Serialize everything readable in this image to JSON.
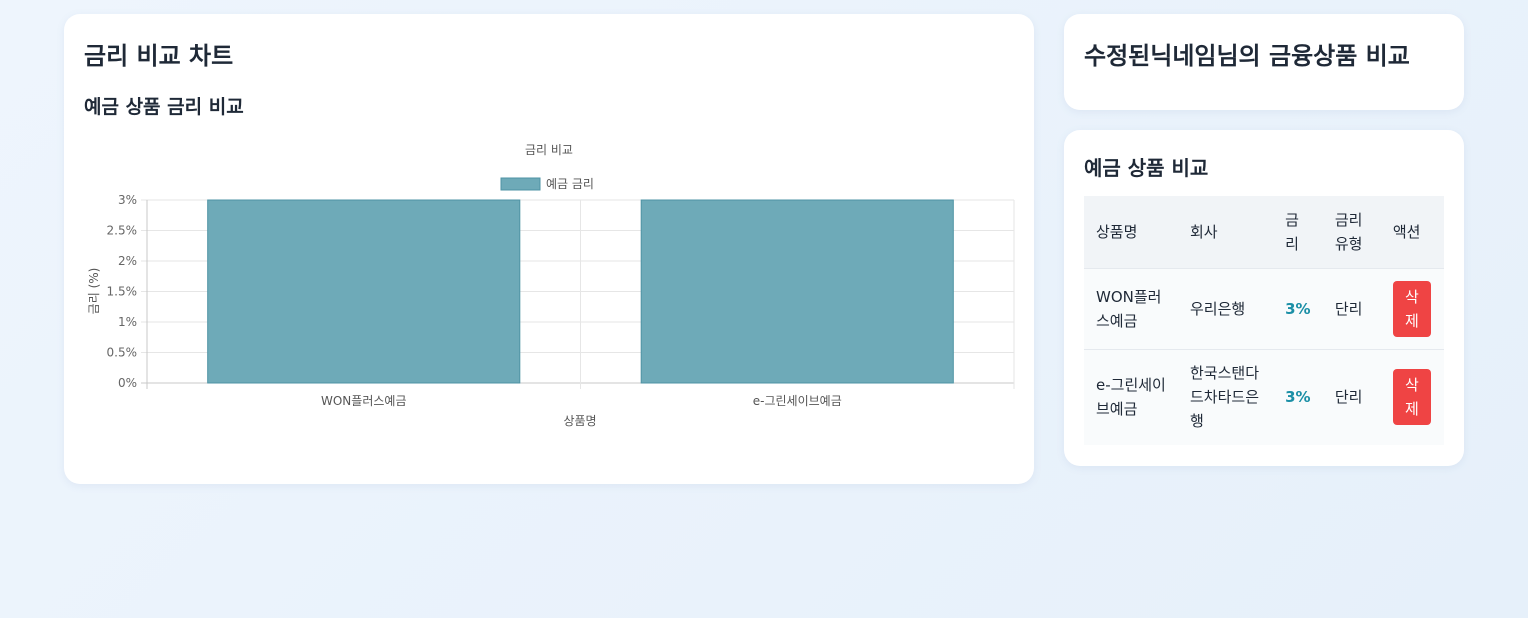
{
  "chart_card": {
    "title": "금리 비교 차트",
    "subtitle": "예금 상품 금리 비교"
  },
  "chart_data": {
    "type": "bar",
    "title": "금리 비교",
    "xlabel": "상품명",
    "ylabel": "금리 (%)",
    "categories": [
      "WON플러스예금",
      "e-그린세이브예금"
    ],
    "series": [
      {
        "name": "예금 금리",
        "values": [
          3,
          3
        ]
      }
    ],
    "ylim": [
      0,
      3
    ],
    "yticks": [
      "0%",
      "0.5%",
      "1%",
      "1.5%",
      "2%",
      "2.5%",
      "3%"
    ],
    "ytick_values": [
      0,
      0.5,
      1,
      1.5,
      2,
      2.5,
      3
    ],
    "grid": true,
    "legend": "top",
    "colors": {
      "bar_fill": "#6eaab8",
      "bar_stroke": "#4e93a4"
    }
  },
  "user_card": {
    "title": "수정된닉네임님의 금융상품 비교"
  },
  "compare_card": {
    "title": "예금 상품 비교",
    "headers": {
      "name": "상품명",
      "company": "회사",
      "rate": "금리",
      "rate_type": "금리유형",
      "action": "액션"
    },
    "rows": [
      {
        "name": "WON플러스예금",
        "company": "우리은행",
        "rate": "3%",
        "rate_type": "단리",
        "action": "삭제"
      },
      {
        "name": "e-그린세이브예금",
        "company": "한국스탠다드차타드은행",
        "rate": "3%",
        "rate_type": "단리",
        "action": "삭제"
      }
    ]
  }
}
